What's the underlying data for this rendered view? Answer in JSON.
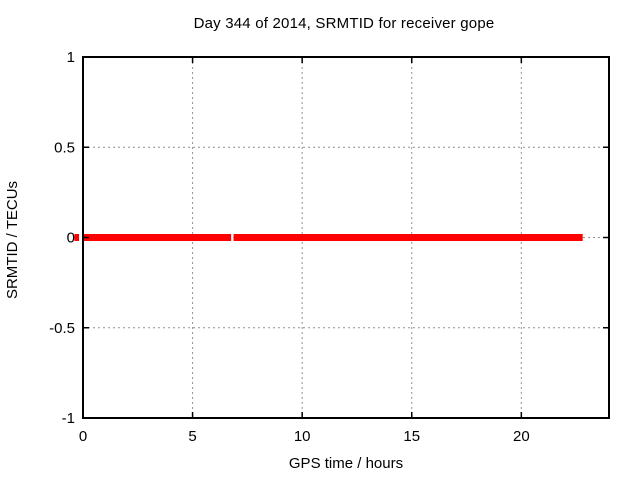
{
  "window": {
    "background": "#ffffff"
  },
  "chart_data": {
    "type": "line",
    "title": "Day 344 of 2014, SRMTID for receiver gope",
    "xlabel": "GPS time / hours",
    "ylabel": "SRMTID / TECUs",
    "xlim": [
      0,
      24
    ],
    "ylim": [
      -1,
      1
    ],
    "xticks": [
      0,
      5,
      10,
      15,
      20
    ],
    "xtick_labels": [
      "0",
      "5",
      "10",
      "15",
      "20"
    ],
    "yticks": [
      -1,
      -0.5,
      0,
      0.5,
      1
    ],
    "ytick_labels": [
      "-1",
      "-0.5",
      "0",
      "0.5",
      "1"
    ],
    "grid": true,
    "grid_style": "dashed",
    "tick_direction": "in",
    "legend_position": "none",
    "series": [
      {
        "name": "SRMTID",
        "color": "#ff0000",
        "stroke_width_px": 7,
        "y_value": 0,
        "segments_x_hours": [
          [
            0,
            6.76
          ],
          [
            6.87,
            22.8
          ]
        ],
        "pre_axis_mark_x_hours": [
          -0.39,
          -0.18
        ]
      }
    ],
    "colors": {
      "series_red": "#ff0000",
      "grid_gray": "#919191",
      "border_black": "#000000",
      "background": "#ffffff",
      "text": "#000000"
    }
  }
}
